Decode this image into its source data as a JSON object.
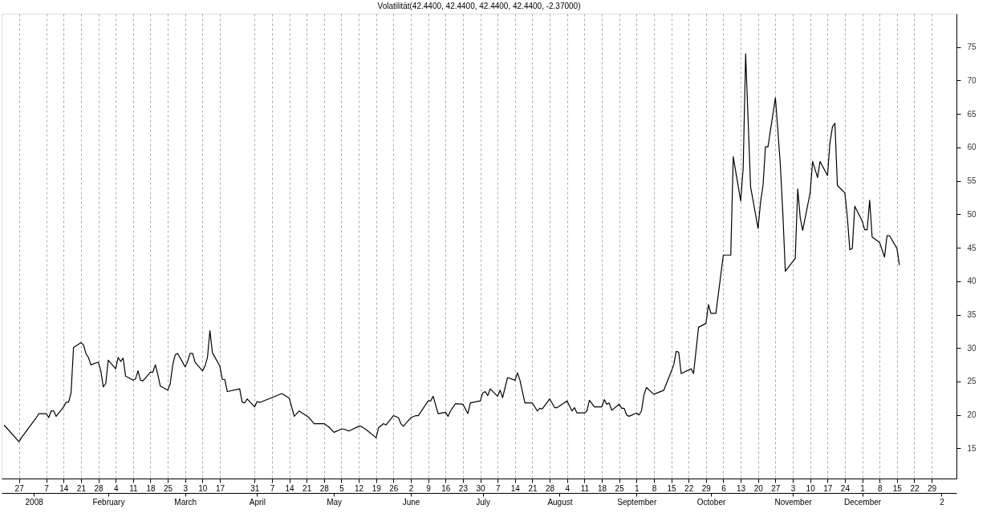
{
  "chart_data": {
    "type": "line",
    "title": "Volatilität(42.4400, 42.4400, 42.4400, 42.4400, -2.37000)",
    "x": [
      "2007-12-21",
      "2007-12-27",
      "2007-12-28",
      "2008-01-02",
      "2008-01-03",
      "2008-01-04",
      "2008-01-07",
      "2008-01-08",
      "2008-01-09",
      "2008-01-10",
      "2008-01-11",
      "2008-01-14",
      "2008-01-15",
      "2008-01-16",
      "2008-01-17",
      "2008-01-18",
      "2008-01-21",
      "2008-01-22",
      "2008-01-23",
      "2008-01-24",
      "2008-01-25",
      "2008-01-28",
      "2008-01-29",
      "2008-01-30",
      "2008-01-31",
      "2008-02-01",
      "2008-02-04",
      "2008-02-05",
      "2008-02-06",
      "2008-02-07",
      "2008-02-08",
      "2008-02-11",
      "2008-02-12",
      "2008-02-13",
      "2008-02-14",
      "2008-02-15",
      "2008-02-18",
      "2008-02-19",
      "2008-02-20",
      "2008-02-21",
      "2008-02-22",
      "2008-02-25",
      "2008-02-26",
      "2008-02-27",
      "2008-02-28",
      "2008-02-29",
      "2008-03-03",
      "2008-03-04",
      "2008-03-05",
      "2008-03-06",
      "2008-03-07",
      "2008-03-10",
      "2008-03-11",
      "2008-03-12",
      "2008-03-13",
      "2008-03-14",
      "2008-03-17",
      "2008-03-18",
      "2008-03-19",
      "2008-03-20",
      "2008-03-25",
      "2008-03-26",
      "2008-03-27",
      "2008-03-28",
      "2008-03-31",
      "2008-04-01",
      "2008-04-02",
      "2008-04-03",
      "2008-04-11",
      "2008-04-14",
      "2008-04-16",
      "2008-04-18",
      "2008-04-22",
      "2008-04-24",
      "2008-04-28",
      "2008-04-30",
      "2008-05-02",
      "2008-05-05",
      "2008-05-06",
      "2008-05-08",
      "2008-05-12",
      "2008-05-13",
      "2008-05-15",
      "2008-05-19",
      "2008-05-20",
      "2008-05-22",
      "2008-05-23",
      "2008-05-26",
      "2008-05-28",
      "2008-05-29",
      "2008-05-30",
      "2008-06-02",
      "2008-06-04",
      "2008-06-05",
      "2008-06-09",
      "2008-06-10",
      "2008-06-11",
      "2008-06-13",
      "2008-06-16",
      "2008-06-17",
      "2008-06-18",
      "2008-06-20",
      "2008-06-23",
      "2008-06-25",
      "2008-06-26",
      "2008-06-30",
      "2008-07-01",
      "2008-07-02",
      "2008-07-03",
      "2008-07-04",
      "2008-07-07",
      "2008-07-08",
      "2008-07-09",
      "2008-07-11",
      "2008-07-14",
      "2008-07-15",
      "2008-07-16",
      "2008-07-18",
      "2008-07-21",
      "2008-07-23",
      "2008-07-24",
      "2008-07-25",
      "2008-07-28",
      "2008-07-30",
      "2008-07-31",
      "2008-08-04",
      "2008-08-06",
      "2008-08-07",
      "2008-08-08",
      "2008-08-11",
      "2008-08-12",
      "2008-08-13",
      "2008-08-15",
      "2008-08-18",
      "2008-08-19",
      "2008-08-20",
      "2008-08-21",
      "2008-08-22",
      "2008-08-25",
      "2008-08-26",
      "2008-08-27",
      "2008-08-28",
      "2008-08-29",
      "2008-09-01",
      "2008-09-02",
      "2008-09-03",
      "2008-09-04",
      "2008-09-05",
      "2008-09-08",
      "2008-09-10",
      "2008-09-12",
      "2008-09-15",
      "2008-09-16",
      "2008-09-17",
      "2008-09-18",
      "2008-09-19",
      "2008-09-23",
      "2008-09-24",
      "2008-09-26",
      "2008-09-29",
      "2008-09-30",
      "2008-10-01",
      "2008-10-03",
      "2008-10-06",
      "2008-10-09",
      "2008-10-10",
      "2008-10-13",
      "2008-10-14",
      "2008-10-15",
      "2008-10-16",
      "2008-10-17",
      "2008-10-20",
      "2008-10-21",
      "2008-10-22",
      "2008-10-23",
      "2008-10-24",
      "2008-10-27",
      "2008-10-28",
      "2008-10-29",
      "2008-10-30",
      "2008-10-31",
      "2008-11-04",
      "2008-11-05",
      "2008-11-06",
      "2008-11-07",
      "2008-11-10",
      "2008-11-11",
      "2008-11-13",
      "2008-11-14",
      "2008-11-17",
      "2008-11-18",
      "2008-11-19",
      "2008-11-20",
      "2008-11-21",
      "2008-11-24",
      "2008-11-25",
      "2008-11-26",
      "2008-11-27",
      "2008-11-28",
      "2008-12-01",
      "2008-12-02",
      "2008-12-03",
      "2008-12-04",
      "2008-12-05",
      "2008-12-08",
      "2008-12-10",
      "2008-12-11",
      "2008-12-12",
      "2008-12-15",
      "2008-12-16"
    ],
    "series": [
      {
        "color": "#000000",
        "values": [
          18.5,
          16.0,
          16.6,
          19.1,
          19.6,
          20.2,
          20.2,
          19.6,
          20.6,
          20.6,
          19.8,
          21.2,
          21.9,
          21.9,
          23.3,
          30.1,
          30.8,
          30.5,
          29.2,
          28.6,
          27.5,
          27.9,
          26.6,
          24.2,
          24.7,
          28.2,
          26.9,
          28.6,
          28.0,
          28.5,
          25.8,
          25.2,
          25.4,
          26.6,
          25.2,
          25.1,
          26.4,
          26.4,
          27.5,
          26.0,
          24.3,
          23.7,
          24.7,
          27.5,
          29.0,
          29.2,
          27.2,
          28.0,
          29.2,
          29.2,
          27.9,
          26.6,
          27.3,
          28.6,
          32.6,
          29.3,
          27.3,
          25.3,
          25.3,
          23.5,
          23.9,
          21.9,
          21.8,
          22.4,
          21.2,
          22.0,
          21.9,
          22.0,
          23.2,
          22.5,
          19.8,
          20.6,
          19.6,
          18.7,
          18.7,
          18.2,
          17.4,
          17.9,
          17.9,
          17.6,
          18.3,
          18.3,
          17.8,
          16.6,
          18.1,
          18.7,
          18.5,
          19.9,
          19.6,
          18.7,
          18.3,
          19.6,
          19.9,
          19.9,
          22.1,
          22.1,
          22.8,
          20.2,
          20.4,
          19.8,
          20.6,
          21.7,
          21.6,
          20.2,
          21.8,
          22.1,
          23.3,
          23.5,
          22.9,
          23.9,
          22.8,
          23.7,
          22.6,
          25.6,
          25.2,
          26.3,
          25.2,
          21.8,
          21.8,
          20.6,
          21.0,
          20.9,
          22.4,
          21.1,
          21.1,
          22.1,
          20.6,
          21.1,
          20.3,
          20.3,
          20.6,
          22.2,
          21.2,
          21.2,
          22.3,
          21.6,
          21.8,
          20.7,
          21.6,
          21.0,
          21.0,
          20.0,
          19.8,
          20.3,
          20.0,
          20.6,
          23.0,
          24.1,
          23.1,
          23.4,
          23.7,
          26.5,
          27.5,
          29.5,
          29.4,
          26.2,
          26.9,
          26.2,
          33.1,
          33.7,
          36.5,
          35.2,
          35.2,
          43.9,
          43.9,
          58.6,
          52.0,
          56.9,
          74.0,
          64.0,
          54.1,
          47.9,
          51.8,
          54.3,
          60.1,
          60.1,
          67.4,
          62.5,
          57.3,
          50.1,
          41.5,
          43.4,
          53.8,
          49.5,
          47.6,
          53.2,
          57.9,
          55.5,
          57.9,
          55.8,
          60.7,
          63.1,
          63.6,
          54.3,
          53.2,
          49.6,
          44.7,
          44.9,
          51.2,
          49.0,
          47.7,
          47.7,
          52.1,
          46.6,
          45.8,
          43.6,
          46.8,
          46.8,
          44.9,
          42.4
        ]
      }
    ],
    "xlim": [
      "2007-12-20",
      "2009-01-08"
    ],
    "xticks": [
      {
        "value": "2007-12-27",
        "label": "27"
      },
      {
        "value": "2008-01-07",
        "label": "7"
      },
      {
        "value": "2008-01-14",
        "label": "14"
      },
      {
        "value": "2008-01-21",
        "label": "21"
      },
      {
        "value": "2008-01-28",
        "label": "28"
      },
      {
        "value": "2008-02-04",
        "label": "4"
      },
      {
        "value": "2008-02-11",
        "label": "11"
      },
      {
        "value": "2008-02-18",
        "label": "18"
      },
      {
        "value": "2008-02-25",
        "label": "25"
      },
      {
        "value": "2008-03-03",
        "label": "3"
      },
      {
        "value": "2008-03-10",
        "label": "10"
      },
      {
        "value": "2008-03-17",
        "label": "17"
      },
      {
        "value": "2008-03-31",
        "label": "31"
      },
      {
        "value": "2008-04-07",
        "label": "7"
      },
      {
        "value": "2008-04-14",
        "label": "14"
      },
      {
        "value": "2008-04-21",
        "label": "21"
      },
      {
        "value": "2008-04-28",
        "label": "28"
      },
      {
        "value": "2008-05-05",
        "label": "5"
      },
      {
        "value": "2008-05-12",
        "label": "12"
      },
      {
        "value": "2008-05-19",
        "label": "19"
      },
      {
        "value": "2008-05-26",
        "label": "26"
      },
      {
        "value": "2008-06-02",
        "label": "2"
      },
      {
        "value": "2008-06-09",
        "label": "9"
      },
      {
        "value": "2008-06-16",
        "label": "16"
      },
      {
        "value": "2008-06-23",
        "label": "23"
      },
      {
        "value": "2008-06-30",
        "label": "30"
      },
      {
        "value": "2008-07-07",
        "label": "7"
      },
      {
        "value": "2008-07-14",
        "label": "14"
      },
      {
        "value": "2008-07-21",
        "label": "21"
      },
      {
        "value": "2008-07-28",
        "label": "28"
      },
      {
        "value": "2008-08-04",
        "label": "4"
      },
      {
        "value": "2008-08-11",
        "label": "11"
      },
      {
        "value": "2008-08-18",
        "label": "18"
      },
      {
        "value": "2008-08-25",
        "label": "25"
      },
      {
        "value": "2008-09-01",
        "label": "1"
      },
      {
        "value": "2008-09-08",
        "label": "8"
      },
      {
        "value": "2008-09-15",
        "label": "15"
      },
      {
        "value": "2008-09-22",
        "label": "22"
      },
      {
        "value": "2008-09-29",
        "label": "29"
      },
      {
        "value": "2008-10-06",
        "label": "6"
      },
      {
        "value": "2008-10-13",
        "label": "13"
      },
      {
        "value": "2008-10-20",
        "label": "20"
      },
      {
        "value": "2008-10-27",
        "label": "27"
      },
      {
        "value": "2008-11-03",
        "label": "3"
      },
      {
        "value": "2008-11-10",
        "label": "10"
      },
      {
        "value": "2008-11-17",
        "label": "17"
      },
      {
        "value": "2008-11-24",
        "label": "24"
      },
      {
        "value": "2008-12-01",
        "label": "1"
      },
      {
        "value": "2008-12-08",
        "label": "8"
      },
      {
        "value": "2008-12-15",
        "label": "15"
      },
      {
        "value": "2008-12-22",
        "label": "22"
      },
      {
        "value": "2008-12-29",
        "label": "29"
      }
    ],
    "x2lim": [
      "2007-12-20",
      "2009-01-08"
    ],
    "x2ticks": [
      {
        "value": "2008-01-02",
        "label": "2008"
      },
      {
        "value": "2008-02-01",
        "label": "February"
      },
      {
        "value": "2008-03-03",
        "label": "March"
      },
      {
        "value": "2008-04-01",
        "label": "April"
      },
      {
        "value": "2008-05-02",
        "label": "May"
      },
      {
        "value": "2008-06-02",
        "label": "June"
      },
      {
        "value": "2008-07-01",
        "label": "July"
      },
      {
        "value": "2008-08-01",
        "label": "August"
      },
      {
        "value": "2008-09-01",
        "label": "September"
      },
      {
        "value": "2008-10-01",
        "label": "October"
      },
      {
        "value": "2008-11-03",
        "label": "November"
      },
      {
        "value": "2008-12-01",
        "label": "December"
      },
      {
        "value": "2009-01-02",
        "label": "2"
      }
    ],
    "ylim": [
      10.5,
      80
    ],
    "yticks": [
      15,
      20,
      25,
      30,
      35,
      40,
      45,
      50,
      55,
      60,
      65,
      70,
      75
    ],
    "grid": "x",
    "legend": false,
    "marker": "none",
    "line_style": "solid"
  }
}
